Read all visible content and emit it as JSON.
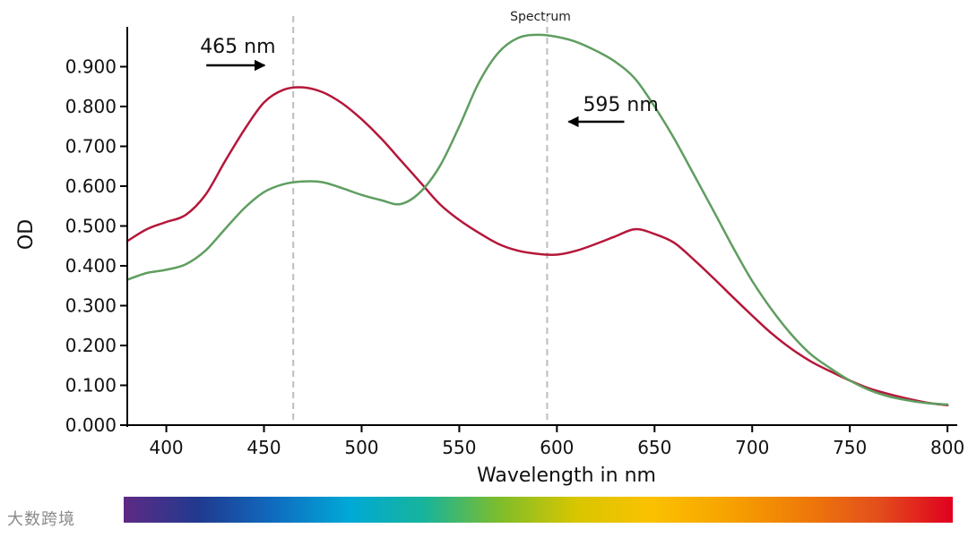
{
  "watermark": "大数跨境",
  "chart_data": {
    "type": "line",
    "title": "Spectrum",
    "xlabel": "Wavelength in nm",
    "ylabel": "OD",
    "xlim": [
      380,
      805
    ],
    "ylim": [
      0,
      1.0
    ],
    "x_ticks": [
      400,
      450,
      500,
      550,
      600,
      650,
      700,
      750,
      800
    ],
    "x_tick_labels": [
      "400",
      "450",
      "500",
      "550",
      "600",
      "650",
      "700",
      "750",
      "800"
    ],
    "y_ticks": [
      0,
      0.1,
      0.2,
      0.3,
      0.4,
      0.5,
      0.6,
      0.7,
      0.8,
      0.9
    ],
    "y_tick_labels": [
      "0.000",
      "0.100",
      "0.200",
      "0.300",
      "0.400",
      "0.500",
      "0.600",
      "0.700",
      "0.800",
      "0.900"
    ],
    "grid": false,
    "reference_lines": [
      {
        "x": 465,
        "label": "465 nm",
        "arrow": "right"
      },
      {
        "x": 595,
        "label": "595 nm",
        "arrow": "left"
      }
    ],
    "series": [
      {
        "name": "red-curve",
        "color": "#b5173a",
        "x": [
          380,
          390,
          400,
          410,
          420,
          430,
          440,
          450,
          460,
          470,
          480,
          490,
          500,
          510,
          520,
          530,
          540,
          550,
          560,
          570,
          580,
          590,
          600,
          610,
          620,
          630,
          640,
          650,
          660,
          670,
          680,
          690,
          700,
          710,
          720,
          730,
          740,
          750,
          760,
          770,
          780,
          790,
          800
        ],
        "values": [
          0.462,
          0.492,
          0.51,
          0.528,
          0.578,
          0.662,
          0.742,
          0.81,
          0.842,
          0.848,
          0.836,
          0.808,
          0.768,
          0.72,
          0.665,
          0.61,
          0.555,
          0.515,
          0.483,
          0.455,
          0.438,
          0.43,
          0.428,
          0.438,
          0.455,
          0.474,
          0.492,
          0.48,
          0.458,
          0.416,
          0.37,
          0.322,
          0.275,
          0.23,
          0.192,
          0.16,
          0.135,
          0.112,
          0.092,
          0.078,
          0.066,
          0.056,
          0.05
        ]
      },
      {
        "name": "green-curve",
        "color": "#5f9e60",
        "x": [
          380,
          390,
          400,
          410,
          420,
          430,
          440,
          450,
          460,
          470,
          480,
          490,
          500,
          510,
          520,
          530,
          540,
          550,
          560,
          570,
          580,
          590,
          600,
          610,
          620,
          630,
          640,
          650,
          660,
          670,
          680,
          690,
          700,
          710,
          720,
          730,
          740,
          750,
          760,
          770,
          780,
          790,
          800
        ],
        "values": [
          0.365,
          0.382,
          0.39,
          0.404,
          0.438,
          0.492,
          0.545,
          0.585,
          0.605,
          0.612,
          0.61,
          0.595,
          0.578,
          0.565,
          0.555,
          0.585,
          0.65,
          0.75,
          0.86,
          0.935,
          0.972,
          0.98,
          0.975,
          0.962,
          0.94,
          0.912,
          0.87,
          0.8,
          0.72,
          0.63,
          0.54,
          0.448,
          0.362,
          0.29,
          0.228,
          0.178,
          0.143,
          0.112,
          0.088,
          0.072,
          0.062,
          0.055,
          0.052
        ]
      }
    ],
    "spectrum_bar": {
      "label": "visible spectrum",
      "colors": [
        "#5e2a84",
        "#203a8f",
        "#0f6cc0",
        "#00a9d6",
        "#18b49a",
        "#7fbd2a",
        "#d8c600",
        "#fbc100",
        "#f7a300",
        "#ef7c08",
        "#e34f1c",
        "#e0001f"
      ]
    }
  }
}
